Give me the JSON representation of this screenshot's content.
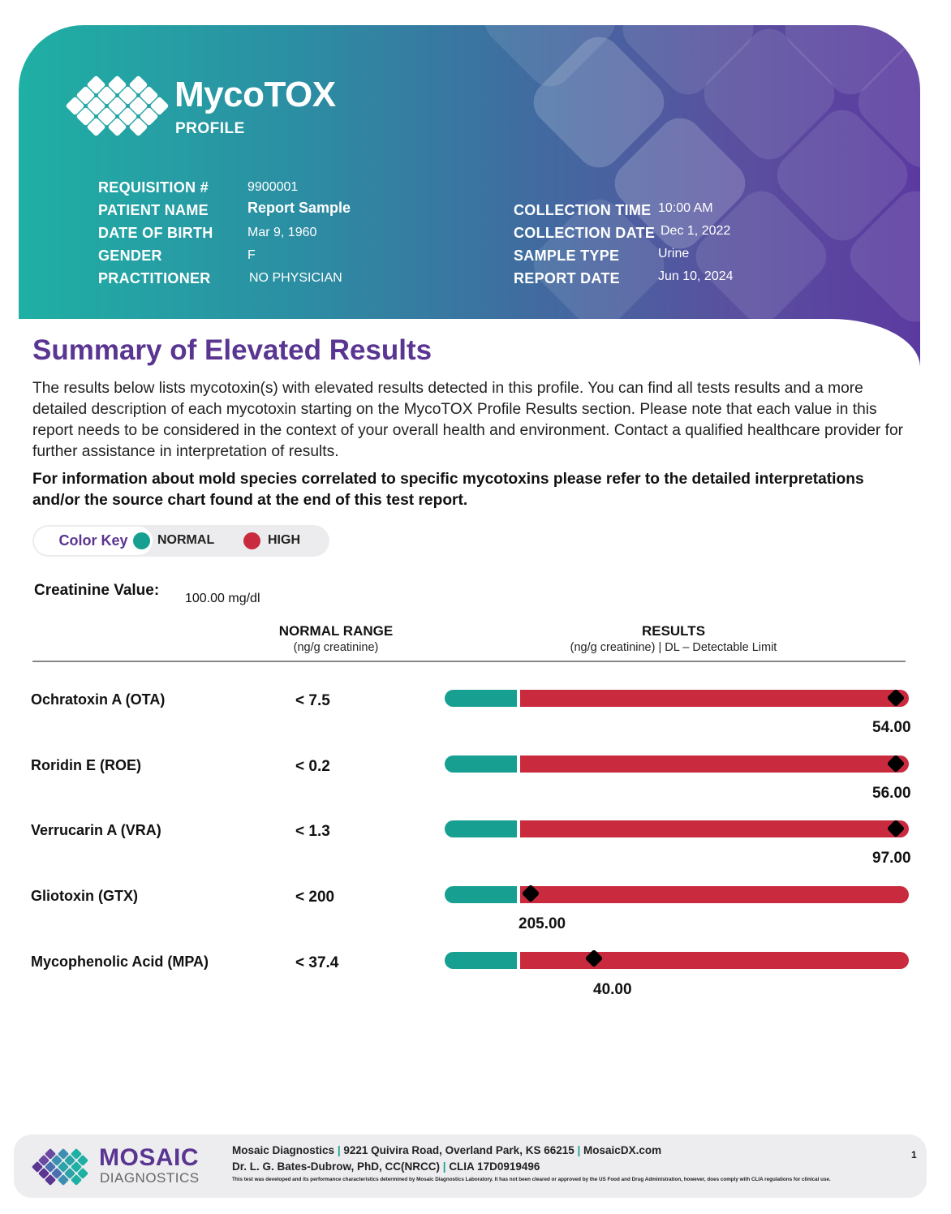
{
  "header": {
    "brand_name": "MycoTOX",
    "brand_sub": "PROFILE",
    "fields_left": [
      {
        "label": "REQUISITION #",
        "value": "9900001"
      },
      {
        "label": "PATIENT NAME",
        "value": "Report Sample"
      },
      {
        "label": "DATE OF BIRTH",
        "value": "Mar 9, 1960"
      },
      {
        "label": "GENDER",
        "value": "F"
      },
      {
        "label": "PRACTITIONER",
        "value": "NO PHYSICIAN"
      }
    ],
    "fields_right": [
      {
        "label": "COLLECTION TIME",
        "value": "10:00 AM"
      },
      {
        "label": "COLLECTION DATE",
        "value": "Dec 1, 2022"
      },
      {
        "label": "SAMPLE TYPE",
        "value": "Urine"
      },
      {
        "label": "REPORT DATE",
        "value": "Jun 10, 2024"
      }
    ]
  },
  "summary": {
    "title": "Summary of Elevated Results",
    "body": "The results below lists mycotoxin(s) with elevated results detected in this profile. You can find all tests results and a more detailed description of each mycotoxin starting on the MycoTOX Profile Results section. Please note that each value in this report needs to be considered in the context of your overall health and environment. Contact a qualified healthcare provider for further assistance in interpretation of results.",
    "note": "For information about mold species correlated to specific mycotoxins please refer to the detailed interpretations and/or the source chart found at the end of this test report."
  },
  "color_key": {
    "label": "Color Key",
    "normal": {
      "label": "NORMAL",
      "color": "#17a091"
    },
    "high": {
      "label": "HIGH",
      "color": "#c92a3e"
    }
  },
  "creatinine": {
    "label": "Creatinine Value:",
    "value": "100.00 mg/dl"
  },
  "table_headers": {
    "range_title": "NORMAL RANGE",
    "range_unit": "(ng/g creatinine)",
    "results_title": "RESULTS",
    "results_unit": "(ng/g creatinine) | DL – Detectable Limit"
  },
  "results": [
    {
      "name": "Ochratoxin A (OTA)",
      "range": "< 7.5",
      "value": "54.00",
      "position": 1.0
    },
    {
      "name": "Roridin E (ROE)",
      "range": "< 0.2",
      "value": "56.00",
      "position": 1.0
    },
    {
      "name": "Verrucarin A (VRA)",
      "range": "< 1.3",
      "value": "97.00",
      "position": 1.0
    },
    {
      "name": "Gliotoxin (GTX)",
      "range": "< 200",
      "value": "205.00",
      "position": 0.02
    },
    {
      "name": "Mycophenolic Acid (MPA)",
      "range": "< 37.4",
      "value": "40.00",
      "position": 0.19
    }
  ],
  "footer": {
    "brand": "MOSAIC",
    "brand_sub": "DIAGNOSTICS",
    "company": "Mosaic Diagnostics",
    "address": "9221 Quivira Road, Overland Park, KS 66215",
    "website": "MosaicDX.com",
    "director": "Dr. L. G. Bates-Dubrow, PhD, CC(NRCC)",
    "clia": "CLIA 17D0919496",
    "disclaimer": "This test was developed and its performance characteristics determined by Mosaic Diagnostics Laboratory. It has not been cleared or approved by the US Food and Drug Administration,  however, does comply with CLIA regulations for clinical use.",
    "page_number": "1"
  }
}
